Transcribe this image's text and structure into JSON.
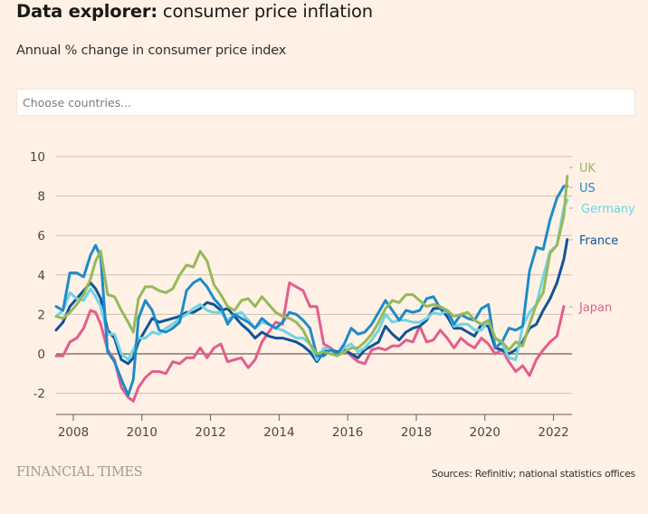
{
  "header": {
    "title_prefix": "Data explorer:",
    "title_rest": " consumer price inflation",
    "subtitle": "Annual % change in consumer price index"
  },
  "search": {
    "placeholder": "Choose countries..."
  },
  "footer": {
    "logo": "FINANCIAL TIMES",
    "source": "Sources: Refinitiv; national statistics offices"
  },
  "chart_data": {
    "type": "line",
    "title": "Data explorer: consumer price inflation",
    "subtitle": "Annual % change in consumer price index",
    "xlabel": "",
    "ylabel": "",
    "xlim": [
      2007.5,
      2022.55
    ],
    "ylim": [
      -3,
      10
    ],
    "yticks": [
      -2,
      0,
      2,
      4,
      6,
      8,
      10
    ],
    "ytick_labels": [
      "-2",
      "0",
      "2",
      "4",
      "6",
      "8",
      "10"
    ],
    "xticks": [
      2008,
      2010,
      2012,
      2014,
      2016,
      2018,
      2020,
      2022
    ],
    "xtick_labels": [
      "2008",
      "2010",
      "2012",
      "2014",
      "2016",
      "2018",
      "2020",
      "2022"
    ],
    "grid": true,
    "legend": "direct labels at right end of lines",
    "source": "Sources: Refinitiv; national statistics offices",
    "series": [
      {
        "name": "Japan",
        "color": "#e35d8e",
        "x": [
          2007.5,
          2007.7,
          2007.9,
          2008.1,
          2008.3,
          2008.5,
          2008.65,
          2008.8,
          2009.0,
          2009.2,
          2009.4,
          2009.6,
          2009.75,
          2009.9,
          2010.1,
          2010.3,
          2010.5,
          2010.7,
          2010.9,
          2011.1,
          2011.3,
          2011.5,
          2011.7,
          2011.9,
          2012.1,
          2012.3,
          2012.5,
          2012.7,
          2012.9,
          2013.1,
          2013.3,
          2013.5,
          2013.7,
          2013.9,
          2014.1,
          2014.3,
          2014.5,
          2014.7,
          2014.9,
          2015.1,
          2015.3,
          2015.5,
          2015.7,
          2015.9,
          2016.1,
          2016.3,
          2016.5,
          2016.7,
          2016.9,
          2017.1,
          2017.3,
          2017.5,
          2017.7,
          2017.9,
          2018.1,
          2018.3,
          2018.5,
          2018.7,
          2018.9,
          2019.1,
          2019.3,
          2019.5,
          2019.7,
          2019.9,
          2020.1,
          2020.3,
          2020.5,
          2020.7,
          2020.9,
          2021.1,
          2021.3,
          2021.5,
          2021.7,
          2021.9,
          2022.1,
          2022.3
        ],
        "values": [
          -0.1,
          -0.1,
          0.6,
          0.8,
          1.3,
          2.2,
          2.1,
          1.5,
          0.2,
          -0.3,
          -1.7,
          -2.2,
          -2.4,
          -1.7,
          -1.2,
          -0.9,
          -0.9,
          -1.0,
          -0.4,
          -0.5,
          -0.2,
          -0.2,
          0.3,
          -0.2,
          0.3,
          0.5,
          -0.4,
          -0.3,
          -0.2,
          -0.7,
          -0.3,
          0.6,
          1.1,
          1.6,
          1.5,
          3.6,
          3.4,
          3.2,
          2.4,
          2.4,
          0.5,
          0.3,
          0.0,
          0.2,
          -0.1,
          -0.4,
          -0.5,
          0.2,
          0.3,
          0.2,
          0.4,
          0.4,
          0.7,
          0.6,
          1.4,
          0.6,
          0.7,
          1.2,
          0.8,
          0.3,
          0.8,
          0.5,
          0.3,
          0.8,
          0.5,
          0.0,
          0.2,
          -0.4,
          -0.9,
          -0.6,
          -1.1,
          -0.3,
          0.2,
          0.6,
          0.9,
          2.4
        ]
      },
      {
        "name": "France",
        "color": "#0f5499",
        "x": [
          2007.5,
          2007.7,
          2007.9,
          2008.1,
          2008.3,
          2008.5,
          2008.65,
          2008.8,
          2009.0,
          2009.2,
          2009.4,
          2009.6,
          2009.75,
          2009.9,
          2010.1,
          2010.3,
          2010.5,
          2010.7,
          2010.9,
          2011.1,
          2011.3,
          2011.5,
          2011.7,
          2011.9,
          2012.1,
          2012.3,
          2012.5,
          2012.7,
          2012.9,
          2013.1,
          2013.3,
          2013.5,
          2013.7,
          2013.9,
          2014.1,
          2014.3,
          2014.5,
          2014.7,
          2014.9,
          2015.1,
          2015.3,
          2015.5,
          2015.7,
          2015.9,
          2016.1,
          2016.3,
          2016.5,
          2016.7,
          2016.9,
          2017.1,
          2017.3,
          2017.5,
          2017.7,
          2017.9,
          2018.1,
          2018.3,
          2018.5,
          2018.7,
          2018.9,
          2019.1,
          2019.3,
          2019.5,
          2019.7,
          2019.9,
          2020.1,
          2020.3,
          2020.5,
          2020.7,
          2020.9,
          2021.1,
          2021.3,
          2021.5,
          2021.7,
          2021.9,
          2022.1,
          2022.3,
          2022.4
        ],
        "values": [
          1.2,
          1.6,
          2.4,
          2.8,
          3.2,
          3.6,
          3.3,
          2.8,
          1.2,
          0.8,
          -0.3,
          -0.5,
          -0.2,
          0.6,
          1.2,
          1.8,
          1.6,
          1.7,
          1.8,
          1.9,
          2.1,
          2.1,
          2.3,
          2.6,
          2.5,
          2.2,
          2.3,
          1.9,
          1.5,
          1.2,
          0.8,
          1.1,
          0.9,
          0.8,
          0.8,
          0.7,
          0.6,
          0.4,
          0.1,
          -0.4,
          0.1,
          0.2,
          0.1,
          0.2,
          0.0,
          -0.2,
          0.2,
          0.4,
          0.6,
          1.4,
          1.0,
          0.7,
          1.1,
          1.3,
          1.4,
          1.7,
          2.3,
          2.3,
          1.9,
          1.3,
          1.3,
          1.1,
          0.9,
          1.5,
          1.4,
          0.3,
          0.2,
          0.0,
          0.2,
          0.6,
          1.3,
          1.5,
          2.2,
          2.8,
          3.6,
          4.8,
          5.8
        ]
      },
      {
        "name": "Germany",
        "color": "#6fd4e4",
        "x": [
          2007.5,
          2007.7,
          2007.9,
          2008.1,
          2008.3,
          2008.5,
          2008.65,
          2008.8,
          2009.0,
          2009.2,
          2009.4,
          2009.6,
          2009.75,
          2009.9,
          2010.1,
          2010.3,
          2010.5,
          2010.7,
          2010.9,
          2011.1,
          2011.3,
          2011.5,
          2011.7,
          2011.9,
          2012.1,
          2012.3,
          2012.5,
          2012.7,
          2012.9,
          2013.1,
          2013.3,
          2013.5,
          2013.7,
          2013.9,
          2014.1,
          2014.3,
          2014.5,
          2014.7,
          2014.9,
          2015.1,
          2015.3,
          2015.5,
          2015.7,
          2015.9,
          2016.1,
          2016.3,
          2016.5,
          2016.7,
          2016.9,
          2017.1,
          2017.3,
          2017.5,
          2017.7,
          2017.9,
          2018.1,
          2018.3,
          2018.5,
          2018.7,
          2018.9,
          2019.1,
          2019.3,
          2019.5,
          2019.7,
          2019.9,
          2020.1,
          2020.3,
          2020.5,
          2020.7,
          2020.9,
          2021.1,
          2021.3,
          2021.5,
          2021.7,
          2021.9,
          2022.1,
          2022.3,
          2022.4
        ],
        "values": [
          1.9,
          2.2,
          3.1,
          2.8,
          2.7,
          3.3,
          2.9,
          2.4,
          1.0,
          1.0,
          0.0,
          -0.3,
          0.2,
          0.8,
          0.8,
          1.1,
          1.0,
          1.3,
          1.5,
          1.8,
          2.0,
          2.3,
          2.5,
          2.2,
          2.1,
          2.1,
          1.7,
          2.0,
          2.1,
          1.7,
          1.3,
          1.6,
          1.5,
          1.3,
          1.2,
          1.0,
          0.8,
          0.8,
          0.5,
          -0.3,
          0.3,
          0.2,
          0.0,
          0.3,
          0.5,
          0.1,
          0.3,
          0.7,
          1.2,
          2.0,
          1.6,
          1.7,
          1.7,
          1.6,
          1.6,
          1.8,
          2.1,
          2.0,
          2.2,
          1.4,
          1.5,
          1.5,
          1.2,
          1.2,
          1.7,
          0.8,
          0.5,
          -0.2,
          -0.3,
          1.4,
          2.1,
          2.5,
          3.9,
          5.2,
          5.5,
          7.4,
          7.8
        ]
      },
      {
        "name": "US",
        "color": "#1f8ac9",
        "x": [
          2007.5,
          2007.7,
          2007.9,
          2008.1,
          2008.3,
          2008.5,
          2008.65,
          2008.8,
          2009.0,
          2009.2,
          2009.4,
          2009.6,
          2009.75,
          2009.9,
          2010.1,
          2010.3,
          2010.5,
          2010.7,
          2010.9,
          2011.1,
          2011.3,
          2011.5,
          2011.7,
          2011.9,
          2012.1,
          2012.3,
          2012.5,
          2012.7,
          2012.9,
          2013.1,
          2013.3,
          2013.5,
          2013.7,
          2013.9,
          2014.1,
          2014.3,
          2014.5,
          2014.7,
          2014.9,
          2015.1,
          2015.3,
          2015.5,
          2015.7,
          2015.9,
          2016.1,
          2016.3,
          2016.5,
          2016.7,
          2016.9,
          2017.1,
          2017.3,
          2017.5,
          2017.7,
          2017.9,
          2018.1,
          2018.3,
          2018.5,
          2018.7,
          2018.9,
          2019.1,
          2019.3,
          2019.5,
          2019.7,
          2019.9,
          2020.1,
          2020.3,
          2020.5,
          2020.7,
          2020.9,
          2021.1,
          2021.3,
          2021.5,
          2021.7,
          2021.9,
          2022.1,
          2022.3,
          2022.4
        ],
        "values": [
          2.4,
          2.2,
          4.1,
          4.1,
          3.9,
          5.0,
          5.5,
          4.9,
          0.1,
          -0.4,
          -1.3,
          -2.1,
          -1.3,
          1.8,
          2.7,
          2.2,
          1.2,
          1.1,
          1.3,
          1.6,
          3.2,
          3.6,
          3.8,
          3.4,
          2.8,
          2.4,
          1.5,
          2.0,
          1.8,
          1.6,
          1.3,
          1.8,
          1.5,
          1.3,
          1.6,
          2.1,
          2.0,
          1.7,
          1.3,
          -0.1,
          -0.1,
          0.2,
          0.0,
          0.5,
          1.3,
          1.0,
          1.1,
          1.5,
          2.1,
          2.7,
          2.2,
          1.7,
          2.2,
          2.1,
          2.2,
          2.8,
          2.9,
          2.3,
          2.2,
          1.5,
          2.0,
          1.8,
          1.7,
          2.3,
          2.5,
          0.3,
          0.6,
          1.3,
          1.2,
          1.4,
          4.2,
          5.4,
          5.3,
          6.8,
          7.9,
          8.5,
          8.5
        ]
      },
      {
        "name": "UK",
        "color": "#96b95b",
        "x": [
          2007.5,
          2007.7,
          2007.9,
          2008.1,
          2008.3,
          2008.5,
          2008.65,
          2008.8,
          2009.0,
          2009.2,
          2009.4,
          2009.6,
          2009.75,
          2009.9,
          2010.1,
          2010.3,
          2010.5,
          2010.7,
          2010.9,
          2011.1,
          2011.3,
          2011.5,
          2011.7,
          2011.9,
          2012.1,
          2012.3,
          2012.5,
          2012.7,
          2012.9,
          2013.1,
          2013.3,
          2013.5,
          2013.7,
          2013.9,
          2014.1,
          2014.3,
          2014.5,
          2014.7,
          2014.9,
          2015.1,
          2015.3,
          2015.5,
          2015.7,
          2015.9,
          2016.1,
          2016.3,
          2016.5,
          2016.7,
          2016.9,
          2017.1,
          2017.3,
          2017.5,
          2017.7,
          2017.9,
          2018.1,
          2018.3,
          2018.5,
          2018.7,
          2018.9,
          2019.1,
          2019.3,
          2019.5,
          2019.7,
          2019.9,
          2020.1,
          2020.3,
          2020.5,
          2020.7,
          2020.9,
          2021.1,
          2021.3,
          2021.5,
          2021.7,
          2021.9,
          2022.1,
          2022.3,
          2022.4
        ],
        "values": [
          1.9,
          1.8,
          2.1,
          2.5,
          3.0,
          3.8,
          4.7,
          5.2,
          3.0,
          2.9,
          2.2,
          1.6,
          1.1,
          2.8,
          3.4,
          3.4,
          3.2,
          3.1,
          3.3,
          4.0,
          4.5,
          4.4,
          5.2,
          4.7,
          3.5,
          3.0,
          2.4,
          2.2,
          2.7,
          2.8,
          2.4,
          2.9,
          2.5,
          2.1,
          1.9,
          1.8,
          1.6,
          1.2,
          0.5,
          0.0,
          0.1,
          0.0,
          -0.1,
          0.1,
          0.3,
          0.3,
          0.6,
          1.0,
          1.6,
          2.3,
          2.7,
          2.6,
          3.0,
          3.0,
          2.7,
          2.4,
          2.5,
          2.4,
          2.2,
          1.9,
          2.0,
          2.1,
          1.7,
          1.5,
          1.7,
          0.8,
          0.6,
          0.2,
          0.6,
          0.4,
          1.5,
          2.5,
          3.1,
          5.1,
          5.5,
          7.0,
          9.0
        ]
      }
    ]
  }
}
